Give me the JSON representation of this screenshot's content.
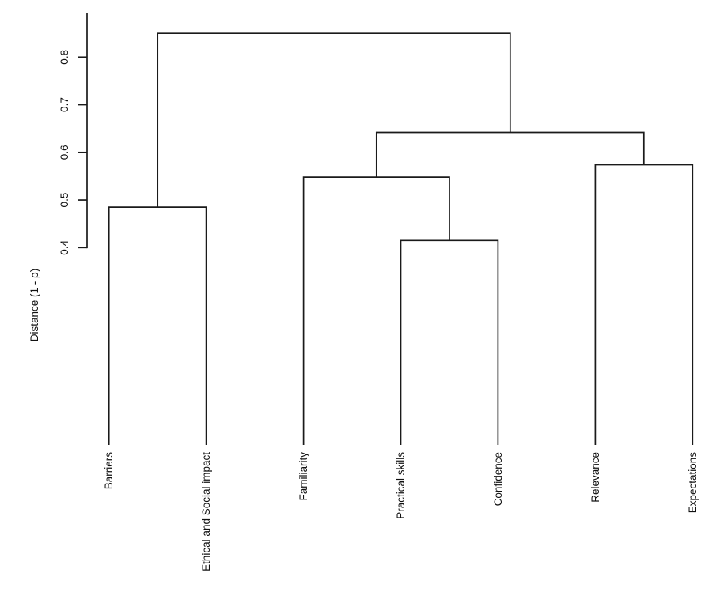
{
  "figure": {
    "background": "#ffffff",
    "line_color": "#1a1a1a",
    "text_color": "#111111"
  },
  "chart_data": {
    "type": "dendrogram",
    "title": "",
    "xlabel": "",
    "ylabel": "Distance (1 - ρ)",
    "yticks": [
      "0.4",
      "0.5",
      "0.6",
      "0.7",
      "0.8"
    ],
    "ylim": [
      0.4,
      0.89
    ],
    "grid": "off",
    "legend": "none",
    "leaves": [
      "Barriers",
      "Ethical and Social impact",
      "Familiarity",
      "Practical skills",
      "Confidence",
      "Relevance",
      "Expectations"
    ],
    "merges": [
      {
        "members": [
          "Practical skills",
          "Confidence"
        ],
        "height": 0.415
      },
      {
        "members": [
          "Barriers",
          "Ethical and Social impact"
        ],
        "height": 0.485
      },
      {
        "members": [
          "Familiarity",
          "Practical skills + Confidence"
        ],
        "height": 0.548
      },
      {
        "members": [
          "Relevance",
          "Expectations"
        ],
        "height": 0.574
      },
      {
        "members": [
          "Familiarity group",
          "Relevance group"
        ],
        "height": 0.642
      },
      {
        "members": [
          "Barriers group",
          "all others"
        ],
        "height": 0.85
      }
    ],
    "tree": {
      "height": 0.85,
      "children": [
        {
          "height": 0.485,
          "children": [
            {
              "leaf": "Barriers"
            },
            {
              "leaf": "Ethical and Social impact"
            }
          ]
        },
        {
          "height": 0.642,
          "children": [
            {
              "height": 0.548,
              "children": [
                {
                  "leaf": "Familiarity"
                },
                {
                  "height": 0.415,
                  "children": [
                    {
                      "leaf": "Practical skills"
                    },
                    {
                      "leaf": "Confidence"
                    }
                  ]
                }
              ]
            },
            {
              "height": 0.574,
              "children": [
                {
                  "leaf": "Relevance"
                },
                {
                  "leaf": "Expectations"
                }
              ]
            }
          ]
        }
      ]
    }
  }
}
